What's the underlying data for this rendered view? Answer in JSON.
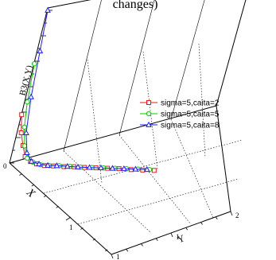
{
  "chart_data": {
    "type": "line",
    "projection": "3d",
    "title": "changes)",
    "xlabel": "X",
    "ylabel": "Y",
    "zlabel": "B3(X,Y)",
    "ticks": {
      "x": [
        "1"
      ],
      "y": [
        "1",
        "2"
      ],
      "z": [
        "0"
      ]
    },
    "grid": true,
    "legend_position": "right",
    "series": [
      {
        "name": "sigma=5,caita=2",
        "color": "#e41a1c",
        "marker": "square",
        "points": [
          [
            0.0,
            0.0,
            0.95
          ],
          [
            0.02,
            0.03,
            0.6
          ],
          [
            0.04,
            0.07,
            0.35
          ],
          [
            0.07,
            0.1,
            0.15
          ],
          [
            0.1,
            0.15,
            0.06
          ],
          [
            0.13,
            0.2,
            0.02
          ],
          [
            0.17,
            0.26,
            0.0
          ],
          [
            0.21,
            0.33,
            0.0
          ],
          [
            0.26,
            0.41,
            0.0
          ],
          [
            0.3,
            0.49,
            0.0
          ],
          [
            0.35,
            0.57,
            0.0
          ],
          [
            0.4,
            0.66,
            0.0
          ],
          [
            0.45,
            0.75,
            0.0
          ],
          [
            0.5,
            0.84,
            0.0
          ],
          [
            0.56,
            0.93,
            0.0
          ],
          [
            0.61,
            1.02,
            0.0
          ],
          [
            0.66,
            1.11,
            0.0
          ]
        ]
      },
      {
        "name": "sigma=5,caita=5",
        "color": "#00cc00",
        "marker": "circle",
        "points": [
          [
            0.0,
            0.0,
            1.95
          ],
          [
            0.01,
            0.02,
            1.2
          ],
          [
            0.02,
            0.05,
            0.7
          ],
          [
            0.05,
            0.08,
            0.35
          ],
          [
            0.08,
            0.12,
            0.12
          ],
          [
            0.11,
            0.17,
            0.05
          ],
          [
            0.15,
            0.23,
            0.01
          ],
          [
            0.19,
            0.3,
            0.0
          ],
          [
            0.23,
            0.38,
            0.0
          ],
          [
            0.28,
            0.46,
            0.0
          ],
          [
            0.33,
            0.54,
            0.0
          ],
          [
            0.38,
            0.63,
            0.0
          ],
          [
            0.43,
            0.72,
            0.0
          ],
          [
            0.48,
            0.81,
            0.0
          ],
          [
            0.53,
            0.9,
            0.0
          ],
          [
            0.58,
            0.99,
            0.0
          ],
          [
            0.63,
            1.08,
            0.0
          ]
        ]
      },
      {
        "name": "sigma=5,caita=8",
        "color": "#1a1aff",
        "marker": "triangle",
        "points": [
          [
            0.0,
            0.0,
            3.0
          ],
          [
            0.01,
            0.02,
            2.2
          ],
          [
            0.02,
            0.04,
            1.3
          ],
          [
            0.04,
            0.07,
            0.6
          ],
          [
            0.07,
            0.11,
            0.22
          ],
          [
            0.1,
            0.16,
            0.06
          ],
          [
            0.14,
            0.22,
            0.02
          ],
          [
            0.18,
            0.29,
            0.0
          ],
          [
            0.22,
            0.36,
            0.0
          ],
          [
            0.27,
            0.44,
            0.0
          ],
          [
            0.32,
            0.52,
            0.0
          ],
          [
            0.37,
            0.61,
            0.0
          ],
          [
            0.42,
            0.7,
            0.0
          ],
          [
            0.47,
            0.79,
            0.0
          ],
          [
            0.52,
            0.88,
            0.0
          ],
          [
            0.57,
            0.97,
            0.0
          ],
          [
            0.62,
            1.06,
            0.0
          ]
        ]
      }
    ]
  }
}
